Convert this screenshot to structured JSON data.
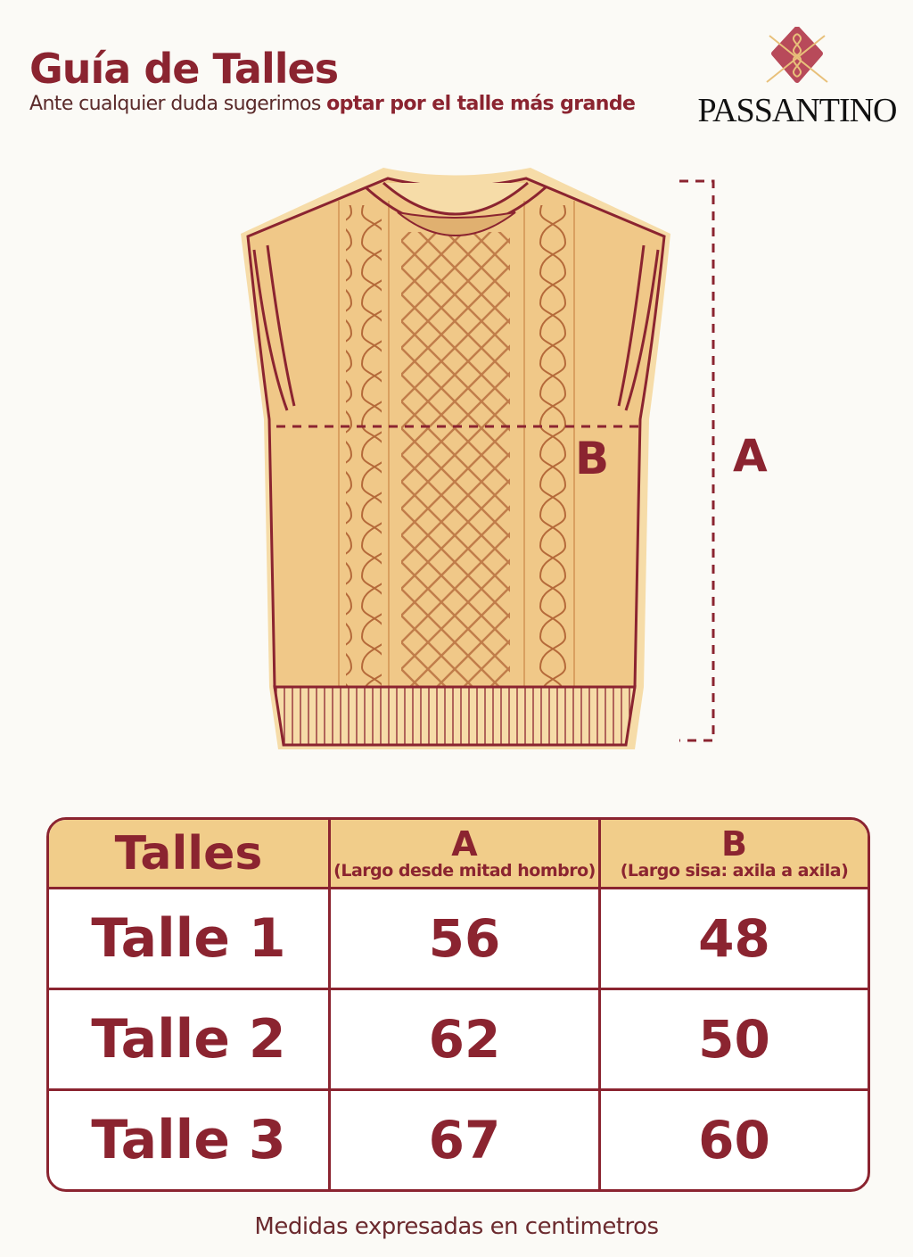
{
  "header": {
    "title": "Guía de Talles",
    "subtitle_regular": "Ante cualquier duda sugerimos ",
    "subtitle_bold": "optar por el talle más grande"
  },
  "brand": {
    "name": "PASSANTINO",
    "icon": "knot-diamond-logo"
  },
  "diagram": {
    "label_a": "A",
    "label_b": "B"
  },
  "table": {
    "headers": [
      {
        "title": "Talles"
      },
      {
        "title": "A",
        "desc": "(Largo desde mitad hombro)"
      },
      {
        "title": "B",
        "desc": "(Largo sisa: axila a axila)"
      }
    ],
    "rows": [
      {
        "size": "Talle 1",
        "a": "56",
        "b": "48"
      },
      {
        "size": "Talle 2",
        "a": "62",
        "b": "50"
      },
      {
        "size": "Talle 3",
        "a": "67",
        "b": "60"
      }
    ]
  },
  "footer": "Medidas expresadas en centimetros",
  "colors": {
    "accent": "#8b2430",
    "vest": "#f0c888",
    "header_row": "#f1cd8a",
    "background": "#fbfaf6"
  }
}
